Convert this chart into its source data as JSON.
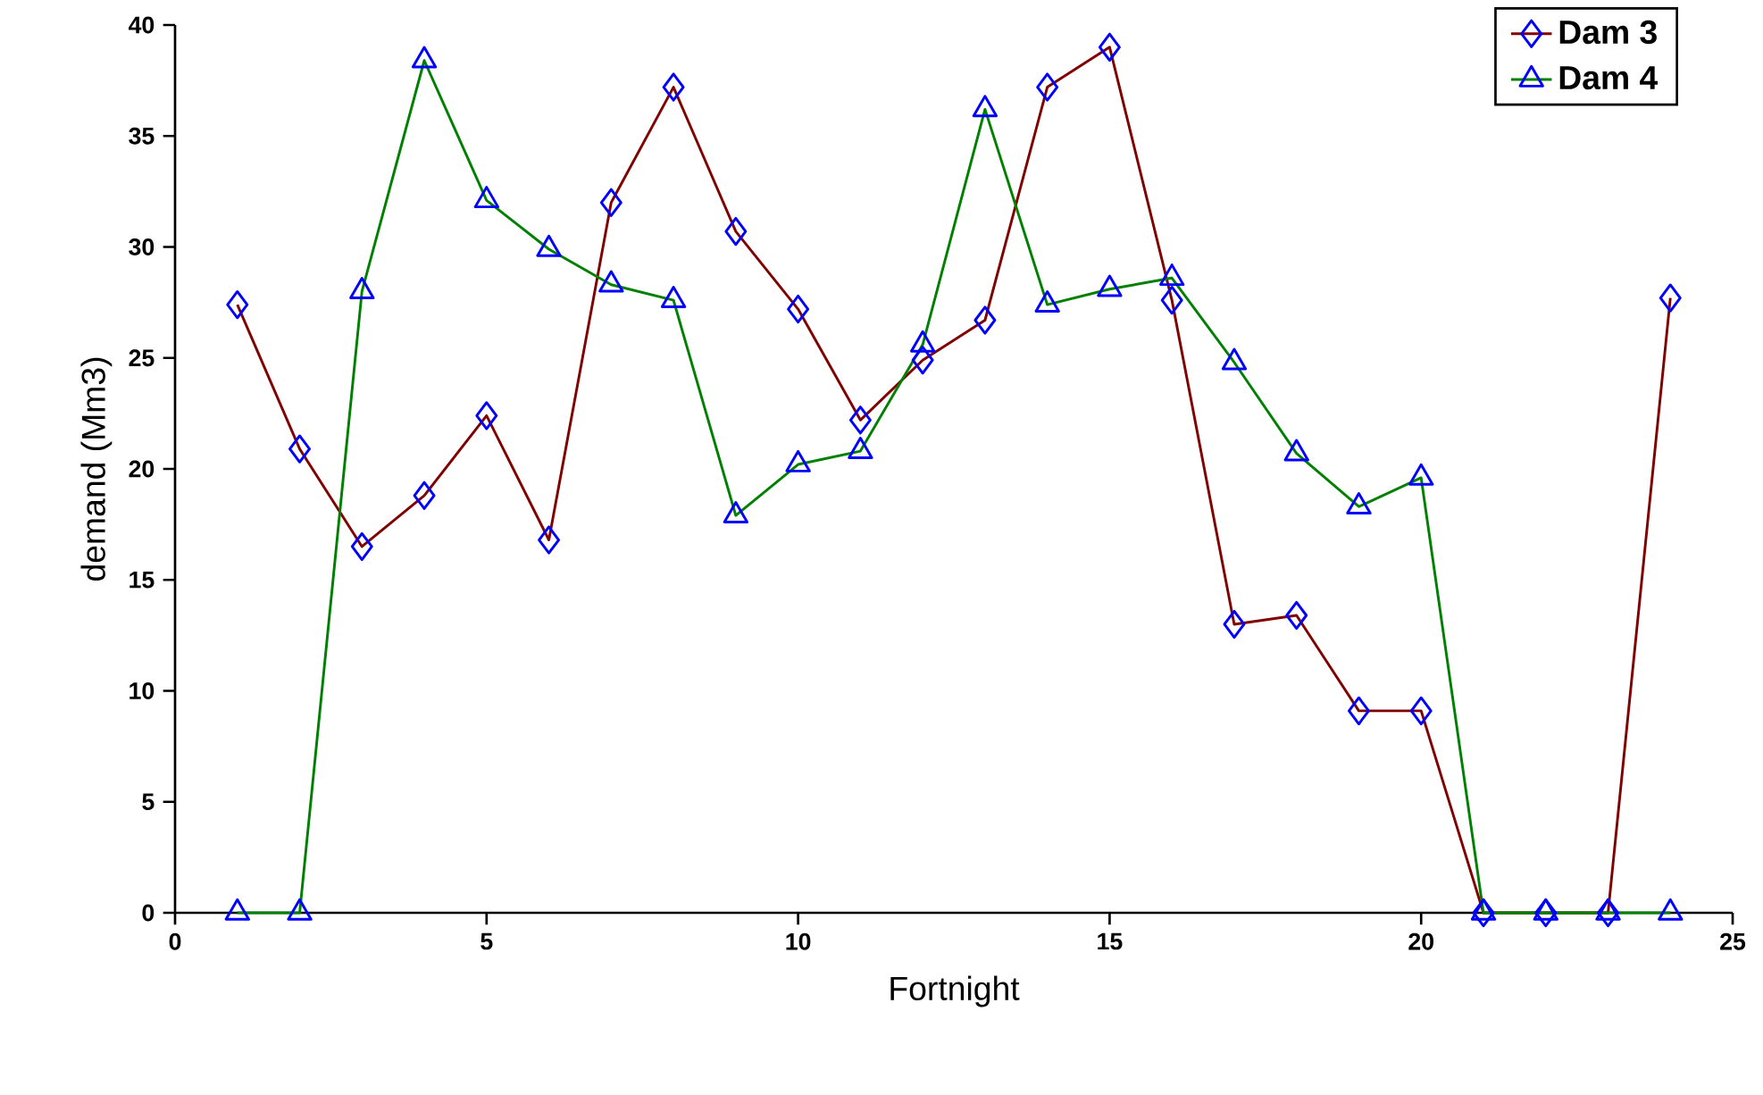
{
  "chart_data": {
    "type": "line",
    "xlabel": "Fortnight",
    "ylabel": "demand (Mm3)",
    "x": [
      1,
      2,
      3,
      4,
      5,
      6,
      7,
      8,
      9,
      10,
      11,
      12,
      13,
      14,
      15,
      16,
      17,
      18,
      19,
      20,
      21,
      22,
      23,
      24
    ],
    "series": [
      {
        "name": "Dam 3",
        "color": "#800000",
        "marker": "diamond",
        "values": [
          27.4,
          20.9,
          16.5,
          18.8,
          22.4,
          16.8,
          32.0,
          37.2,
          30.7,
          27.2,
          22.2,
          24.9,
          26.7,
          37.2,
          39.0,
          27.6,
          13.0,
          13.4,
          9.1,
          9.1,
          0,
          0,
          0,
          27.7
        ]
      },
      {
        "name": "Dam 4",
        "color": "#008000",
        "marker": "triangle",
        "values": [
          0,
          0,
          28.0,
          38.4,
          32.1,
          29.9,
          28.3,
          27.6,
          17.9,
          20.2,
          20.8,
          25.6,
          36.2,
          27.4,
          28.1,
          28.6,
          24.8,
          20.7,
          18.3,
          19.6,
          0,
          0,
          0,
          0
        ]
      }
    ],
    "xlim": [
      0,
      25
    ],
    "xticks": [
      0,
      5,
      10,
      15,
      20,
      25
    ],
    "ylim": [
      0,
      40
    ],
    "yticks": [
      0,
      5,
      10,
      15,
      20,
      25,
      30,
      35,
      40
    ],
    "grid": false,
    "legend": "top right",
    "line_style": "solid"
  }
}
